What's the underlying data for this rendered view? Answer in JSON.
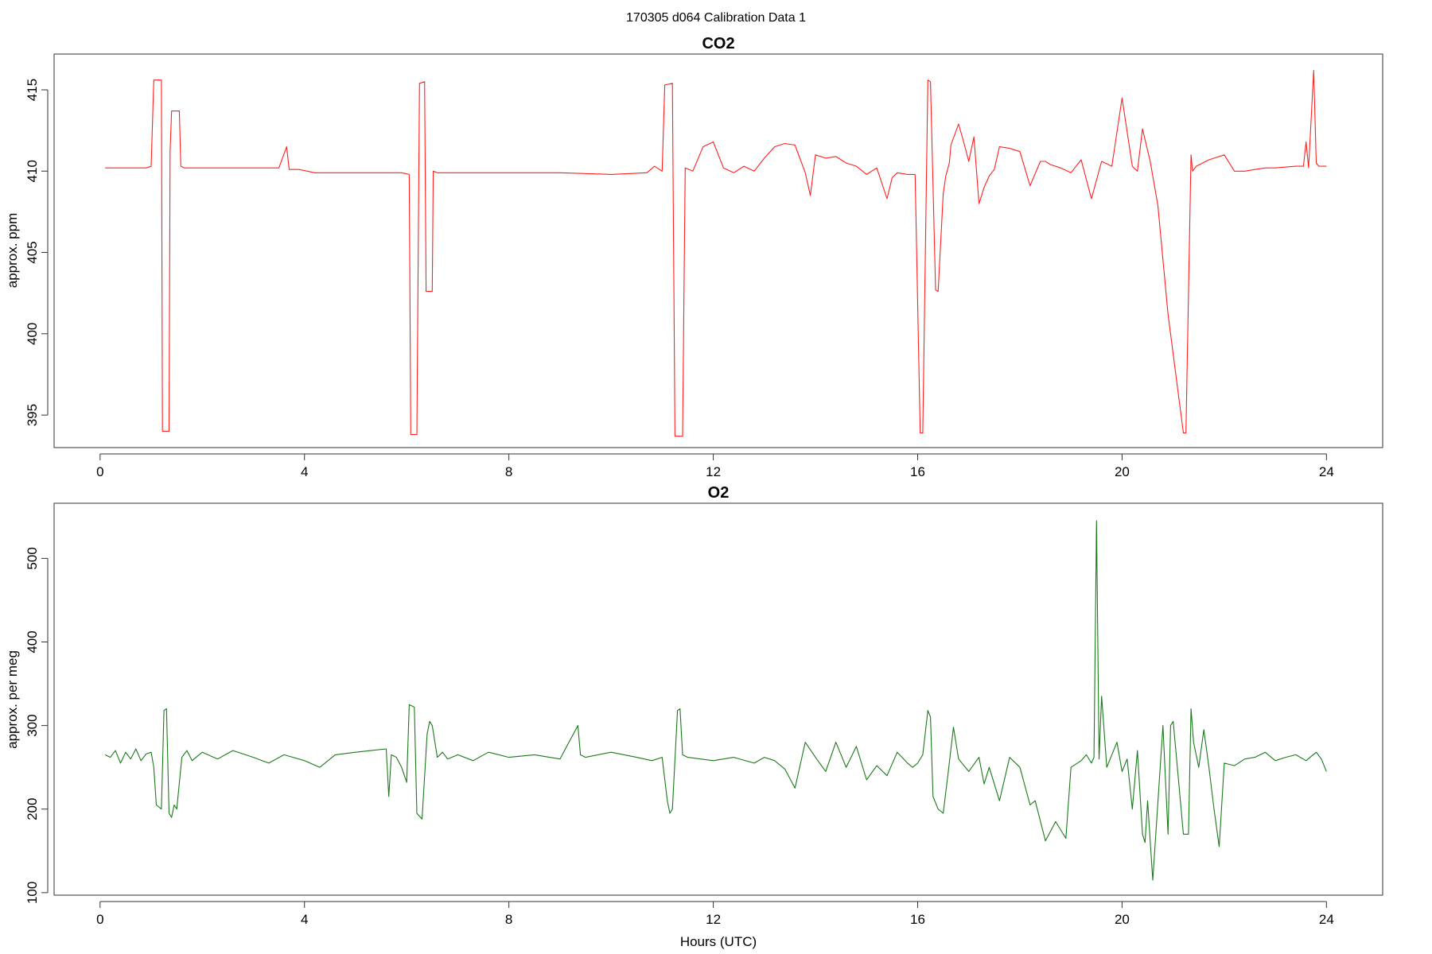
{
  "figure": {
    "suptitle": "170305   d064   Calibration Data 1",
    "xlabel": "Hours (UTC)"
  },
  "chart_data": [
    {
      "type": "line",
      "title": "CO2",
      "xlabel": "",
      "ylabel": "approx. ppm",
      "xlim": [
        -0.9,
        25.1
      ],
      "ylim": [
        393,
        417.2
      ],
      "xticks": [
        0,
        4,
        8,
        12,
        16,
        20,
        24
      ],
      "yticks": [
        395,
        400,
        405,
        410,
        415
      ],
      "color": "#ff2020",
      "grid": false,
      "series": [
        {
          "x": [
            0.1,
            0.5,
            0.9,
            1.0,
            1.05,
            1.2,
            1.22,
            1.35,
            1.37,
            1.4,
            1.55,
            1.58,
            1.65,
            2,
            2.5,
            3,
            3.5,
            3.65,
            3.7,
            3.9,
            4.2,
            4.5,
            5,
            5.5,
            5.9,
            6.05,
            6.08,
            6.2,
            6.25,
            6.35,
            6.38,
            6.5,
            6.52,
            6.6,
            7,
            8,
            9,
            10,
            10.7,
            10.85,
            11.0,
            11.05,
            11.2,
            11.25,
            11.4,
            11.45,
            11.6,
            11.8,
            12.0,
            12.2,
            12.4,
            12.6,
            12.8,
            13.0,
            13.2,
            13.4,
            13.6,
            13.8,
            13.9,
            14.0,
            14.2,
            14.4,
            14.6,
            14.8,
            15.0,
            15.2,
            15.4,
            15.5,
            15.6,
            15.8,
            15.95,
            16.05,
            16.1,
            16.2,
            16.25,
            16.35,
            16.4,
            16.5,
            16.55,
            16.62,
            16.65,
            16.8,
            16.9,
            17.0,
            17.1,
            17.2,
            17.3,
            17.4,
            17.5,
            17.6,
            17.8,
            18.0,
            18.2,
            18.4,
            18.5,
            18.6,
            18.8,
            19.0,
            19.2,
            19.4,
            19.6,
            19.8,
            20.0,
            20.2,
            20.3,
            20.4,
            20.55,
            20.7,
            20.9,
            21.2,
            21.25,
            21.35,
            21.38,
            21.45,
            21.7,
            22.0,
            22.2,
            22.4,
            22.6,
            22.8,
            23.0,
            23.4,
            23.55,
            23.6,
            23.65,
            23.75,
            23.8,
            23.85,
            24.0
          ],
          "y": [
            410.2,
            410.2,
            410.2,
            410.3,
            415.6,
            415.6,
            394.0,
            394.0,
            411.2,
            413.7,
            413.7,
            410.3,
            410.2,
            410.2,
            410.2,
            410.2,
            410.2,
            411.5,
            410.1,
            410.1,
            409.9,
            409.9,
            409.9,
            409.9,
            409.9,
            409.8,
            393.8,
            393.8,
            415.4,
            415.5,
            402.6,
            402.6,
            410.0,
            409.9,
            409.9,
            409.9,
            409.9,
            409.8,
            409.9,
            410.3,
            410.0,
            415.3,
            415.4,
            393.7,
            393.7,
            410.2,
            410.0,
            411.5,
            411.8,
            410.2,
            409.9,
            410.3,
            410.0,
            410.8,
            411.5,
            411.7,
            411.6,
            409.9,
            408.5,
            411.0,
            410.8,
            410.9,
            410.5,
            410.3,
            409.8,
            410.2,
            408.3,
            409.6,
            409.9,
            409.8,
            409.8,
            393.9,
            393.9,
            415.6,
            415.5,
            402.7,
            402.6,
            408.6,
            409.7,
            410.5,
            411.6,
            412.9,
            411.8,
            410.6,
            412.1,
            408.0,
            409.0,
            409.7,
            410.1,
            411.5,
            411.4,
            411.2,
            409.1,
            410.6,
            410.6,
            410.4,
            410.2,
            409.9,
            410.7,
            408.3,
            410.6,
            410.3,
            414.5,
            410.3,
            410.0,
            412.6,
            410.6,
            407.9,
            401.2,
            393.9,
            393.9,
            411.0,
            410.0,
            410.3,
            410.7,
            411.0,
            410.0,
            410.0,
            410.1,
            410.2,
            410.2,
            410.3,
            410.3,
            411.8,
            410.2,
            416.2,
            410.5,
            410.3,
            410.3
          ]
        }
      ]
    },
    {
      "type": "line",
      "title": "O2",
      "xlabel": "Hours (UTC)",
      "ylabel": "approx. per meg",
      "xlim": [
        -0.9,
        25.1
      ],
      "ylim": [
        97,
        566
      ],
      "xticks": [
        0,
        4,
        8,
        12,
        16,
        20,
        24
      ],
      "yticks": [
        100,
        200,
        300,
        400,
        500
      ],
      "color": "#1a7a1a",
      "grid": false,
      "series": [
        {
          "x": [
            0.1,
            0.2,
            0.3,
            0.4,
            0.5,
            0.6,
            0.7,
            0.8,
            0.9,
            1.0,
            1.05,
            1.1,
            1.2,
            1.25,
            1.3,
            1.35,
            1.4,
            1.45,
            1.5,
            1.6,
            1.7,
            1.8,
            2.0,
            2.3,
            2.6,
            3.0,
            3.3,
            3.6,
            4.0,
            4.3,
            4.6,
            5.0,
            5.3,
            5.6,
            5.65,
            5.7,
            5.8,
            5.9,
            6.0,
            6.05,
            6.15,
            6.2,
            6.3,
            6.4,
            6.45,
            6.5,
            6.6,
            6.7,
            6.8,
            7.0,
            7.3,
            7.6,
            8.0,
            8.5,
            9.0,
            9.35,
            9.4,
            9.5,
            10.0,
            10.5,
            10.8,
            11.0,
            11.1,
            11.15,
            11.2,
            11.3,
            11.35,
            11.4,
            11.5,
            12.0,
            12.4,
            12.8,
            13.0,
            13.2,
            13.4,
            13.6,
            13.8,
            14.0,
            14.2,
            14.4,
            14.6,
            14.8,
            15.0,
            15.2,
            15.4,
            15.6,
            15.8,
            15.9,
            16.0,
            16.1,
            16.2,
            16.25,
            16.3,
            16.4,
            16.5,
            16.6,
            16.7,
            16.8,
            17.0,
            17.2,
            17.3,
            17.4,
            17.6,
            17.8,
            18.0,
            18.2,
            18.3,
            18.5,
            18.7,
            18.9,
            19.0,
            19.2,
            19.3,
            19.4,
            19.45,
            19.5,
            19.55,
            19.6,
            19.7,
            19.8,
            19.9,
            20.0,
            20.1,
            20.2,
            20.3,
            20.4,
            20.45,
            20.5,
            20.6,
            20.8,
            20.9,
            20.95,
            21.0,
            21.2,
            21.3,
            21.35,
            21.4,
            21.5,
            21.6,
            21.7,
            21.8,
            21.9,
            22.0,
            22.2,
            22.4,
            22.6,
            22.8,
            23.0,
            23.2,
            23.4,
            23.6,
            23.8,
            23.9,
            24.0
          ],
          "y": [
            265,
            262,
            270,
            255,
            268,
            260,
            272,
            258,
            266,
            268,
            250,
            205,
            200,
            318,
            320,
            195,
            190,
            205,
            200,
            262,
            270,
            258,
            268,
            260,
            270,
            262,
            255,
            265,
            258,
            250,
            265,
            268,
            270,
            272,
            215,
            265,
            262,
            250,
            232,
            325,
            322,
            195,
            188,
            290,
            305,
            300,
            262,
            268,
            260,
            265,
            258,
            268,
            262,
            265,
            260,
            300,
            265,
            262,
            268,
            262,
            258,
            262,
            210,
            195,
            200,
            318,
            320,
            265,
            262,
            258,
            262,
            255,
            262,
            258,
            248,
            225,
            280,
            262,
            245,
            280,
            250,
            275,
            235,
            252,
            240,
            268,
            255,
            250,
            255,
            265,
            318,
            310,
            215,
            200,
            195,
            245,
            298,
            260,
            245,
            262,
            230,
            250,
            210,
            262,
            250,
            205,
            210,
            162,
            185,
            165,
            250,
            258,
            265,
            255,
            262,
            545,
            260,
            335,
            250,
            265,
            280,
            245,
            260,
            200,
            270,
            170,
            160,
            210,
            115,
            300,
            170,
            300,
            305,
            170,
            170,
            320,
            280,
            250,
            295,
            250,
            200,
            155,
            255,
            252,
            260,
            262,
            268,
            258,
            262,
            265,
            258,
            268,
            260,
            245
          ]
        }
      ]
    }
  ]
}
